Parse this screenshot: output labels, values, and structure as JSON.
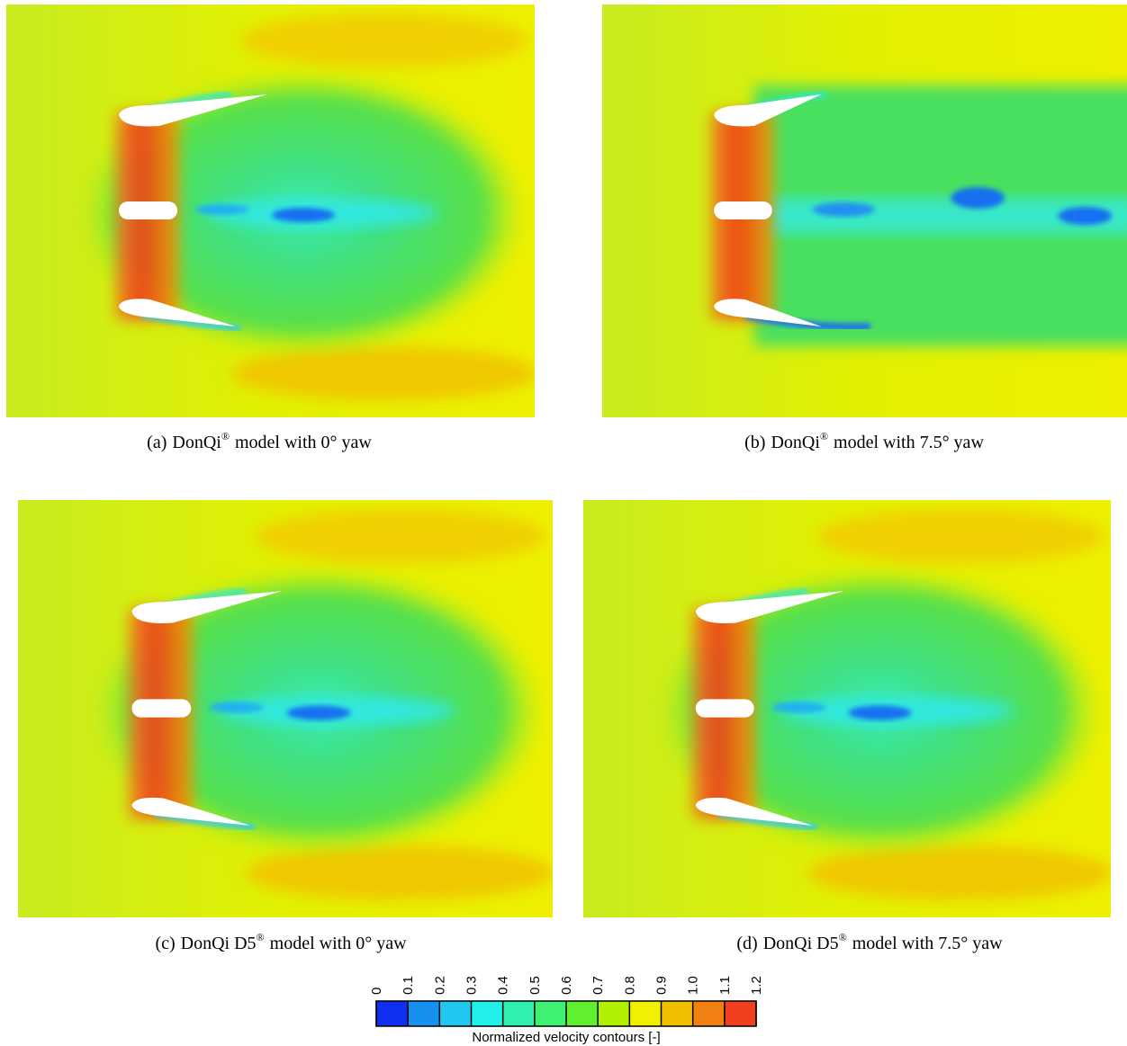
{
  "panels": [
    {
      "label": "(a)",
      "model": "DonQi",
      "mark": "®",
      "text": "model with 0° yaw"
    },
    {
      "label": "(b)",
      "model": "DonQi",
      "mark": "®",
      "text": "model with 7.5° yaw"
    },
    {
      "label": "(c)",
      "model": "DonQi D5",
      "mark": "®",
      "text": "model with 0° yaw"
    },
    {
      "label": "(d)",
      "model": "DonQi D5",
      "mark": "®",
      "text": "model with 7.5° yaw"
    }
  ],
  "colorbar": {
    "ticks": [
      0,
      0.1,
      0.2,
      0.3,
      0.4,
      0.5,
      0.6,
      0.7,
      0.8,
      0.9,
      {
        "value": 1,
        "label": "1.0"
      },
      1.1,
      1.2
    ],
    "colors": [
      "#1030f0",
      "#1890f0",
      "#20c8f0",
      "#20f0e8",
      "#30f0b0",
      "#40f070",
      "#60f030",
      "#b0f000",
      "#f0f000",
      "#f0c000",
      "#f08010",
      "#f04020"
    ],
    "label": "Normalized velocity contours [-]"
  }
}
